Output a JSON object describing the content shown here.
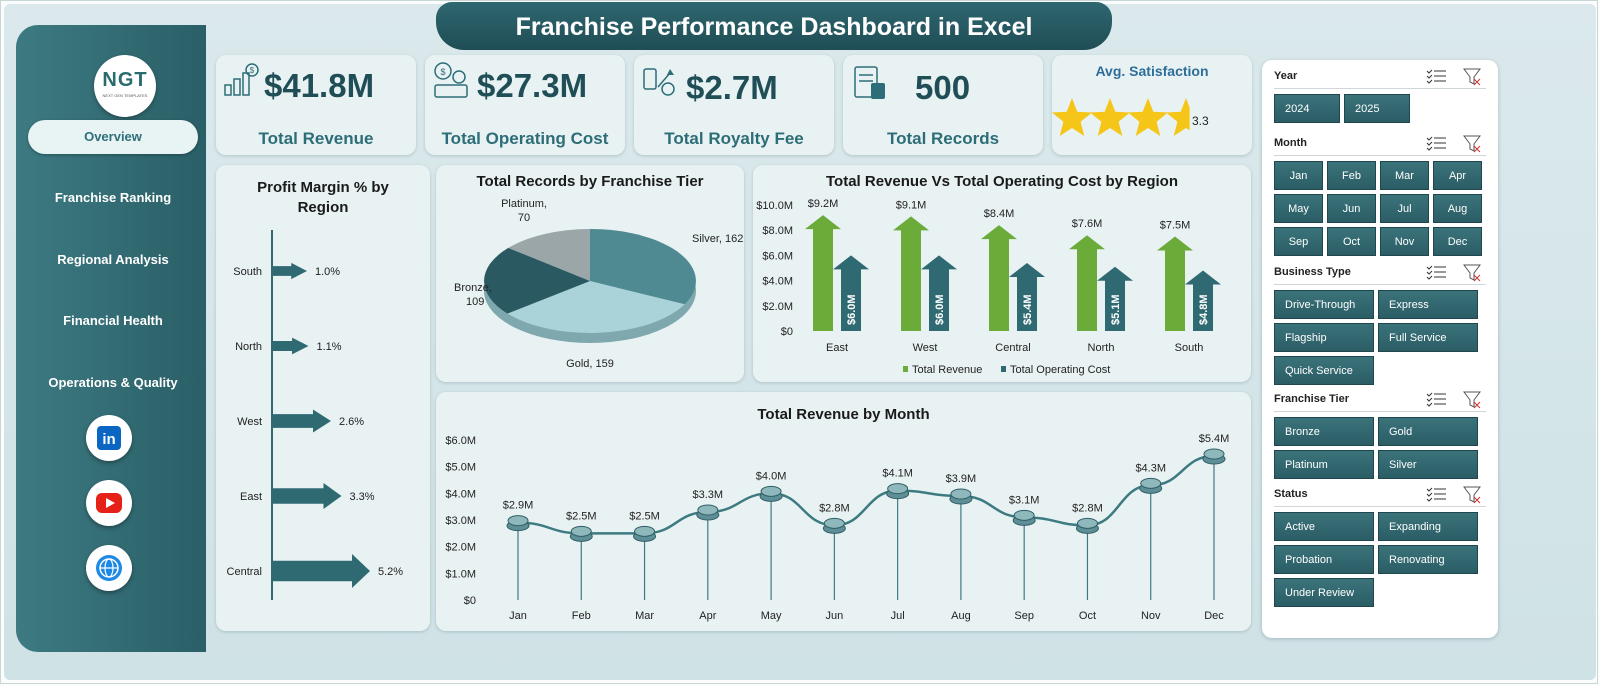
{
  "title": "Franchise Performance Dashboard in Excel",
  "logo": {
    "text": "NGT",
    "subtitle": "NEXT GEN TEMPLATES"
  },
  "nav": [
    {
      "label": "Overview",
      "active": true
    },
    {
      "label": "Franchise Ranking",
      "active": false
    },
    {
      "label": "Regional Analysis",
      "active": false
    },
    {
      "label": "Financial Health",
      "active": false
    },
    {
      "label": "Operations & Quality",
      "active": false
    }
  ],
  "social": [
    {
      "name": "linkedin",
      "icon": "linkedin-icon",
      "color": "#0a66c2"
    },
    {
      "name": "youtube",
      "icon": "youtube-icon",
      "color": "#e62117"
    },
    {
      "name": "website",
      "icon": "globe-icon",
      "color": "#1e88e5"
    }
  ],
  "kpis": [
    {
      "value": "$41.8M",
      "label": "Total Revenue",
      "icon": "revenue-icon"
    },
    {
      "value": "$27.3M",
      "label": "Total Operating Cost",
      "icon": "cost-icon"
    },
    {
      "value": "$2.7M",
      "label": "Total Royalty Fee",
      "icon": "royalty-icon"
    },
    {
      "value": "500",
      "label": "Total Records",
      "icon": "records-icon"
    }
  ],
  "satisfaction": {
    "title": "Avg. Satisfaction",
    "value": "3.3",
    "rating": 3.3,
    "max": 5
  },
  "profit_margin": {
    "title": "Profit Margin % by Region",
    "regions": [
      "South",
      "North",
      "West",
      "East",
      "Central"
    ],
    "values": [
      1.0,
      1.1,
      2.6,
      3.3,
      5.2
    ],
    "labels": [
      "1.0%",
      "1.1%",
      "2.6%",
      "3.3%",
      "5.2%"
    ]
  },
  "chart_data": [
    {
      "type": "pie",
      "title": "Total Records by Franchise Tier",
      "categories": [
        "Silver",
        "Gold",
        "Bronze",
        "Platinum"
      ],
      "values": [
        162,
        159,
        109,
        70
      ],
      "colors": [
        "#4f8a93",
        "#a9d3d9",
        "#2a5961",
        "#9aa6a8"
      ]
    },
    {
      "type": "bar",
      "title": "Total Revenue Vs Total Operating Cost by Region",
      "categories": [
        "East",
        "West",
        "Central",
        "North",
        "South"
      ],
      "series": [
        {
          "name": "Total Revenue",
          "values": [
            9.2,
            9.1,
            8.4,
            7.6,
            7.5
          ],
          "labels": [
            "$9.2M",
            "$9.1M",
            "$8.4M",
            "$7.6M",
            "$7.5M"
          ],
          "color": "#6aab3a"
        },
        {
          "name": "Total Operating Cost",
          "values": [
            6.0,
            6.0,
            5.4,
            5.1,
            4.8
          ],
          "labels": [
            "$6.0M",
            "$6.0M",
            "$5.4M",
            "$5.1M",
            "$4.8M"
          ],
          "color": "#2f6a73"
        }
      ],
      "yticks": [
        "$0",
        "$2.0M",
        "$4.0M",
        "$6.0M",
        "$8.0M",
        "$10.0M"
      ],
      "ylim": [
        0,
        10
      ]
    },
    {
      "type": "line",
      "title": "Total Revenue  by Month",
      "categories": [
        "Jan",
        "Feb",
        "Mar",
        "Apr",
        "May",
        "Jun",
        "Jul",
        "Aug",
        "Sep",
        "Oct",
        "Nov",
        "Dec"
      ],
      "values": [
        2.9,
        2.5,
        2.5,
        3.3,
        4.0,
        2.8,
        4.1,
        3.9,
        3.1,
        2.8,
        4.3,
        5.4
      ],
      "labels": [
        "$2.9M",
        "$2.5M",
        "$2.5M",
        "$3.3M",
        "$4.0M",
        "$2.8M",
        "$4.1M",
        "$3.9M",
        "$3.1M",
        "$2.8M",
        "$4.3M",
        "$5.4M"
      ],
      "yticks": [
        "$0",
        "$1.0M",
        "$2.0M",
        "$3.0M",
        "$4.0M",
        "$5.0M",
        "$6.0M"
      ],
      "ylim": [
        0,
        6
      ]
    }
  ],
  "slicers": [
    {
      "title": "Year",
      "items": [
        "2024",
        "2025"
      ]
    },
    {
      "title": "Month",
      "items": [
        "Jan",
        "Feb",
        "Mar",
        "Apr",
        "May",
        "Jun",
        "Jul",
        "Aug",
        "Sep",
        "Oct",
        "Nov",
        "Dec"
      ]
    },
    {
      "title": "Business Type",
      "items": [
        "Drive-Through",
        "Express",
        "Flagship",
        "Full Service",
        "Quick Service"
      ]
    },
    {
      "title": "Franchise Tier",
      "items": [
        "Bronze",
        "Gold",
        "Platinum",
        "Silver"
      ]
    },
    {
      "title": "Status",
      "items": [
        "Active",
        "Expanding",
        "Probation",
        "Renovating",
        "Under Review"
      ]
    }
  ]
}
